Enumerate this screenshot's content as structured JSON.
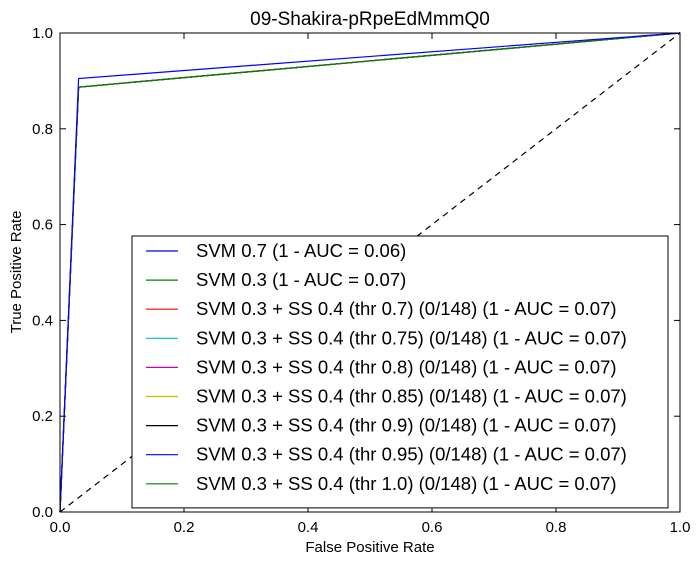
{
  "chart_data": {
    "type": "line",
    "title": "09-Shakira-pRpeEdMmmQ0",
    "xlabel": "False Positive Rate",
    "ylabel": "True Positive Rate",
    "xlim": [
      0.0,
      1.0
    ],
    "ylim": [
      0.0,
      1.0
    ],
    "xticks": [
      "0.0",
      "0.2",
      "0.4",
      "0.6",
      "0.8",
      "1.0"
    ],
    "yticks": [
      "0.0",
      "0.2",
      "0.4",
      "0.6",
      "0.8",
      "1.0"
    ],
    "grid": false,
    "legend_position": "lower-right",
    "diagonal": {
      "style": "dashed",
      "color": "#000000",
      "x": [
        0,
        1
      ],
      "y": [
        0,
        1
      ]
    },
    "series": [
      {
        "name": "SVM 0.7 (1 - AUC = 0.06)",
        "color": "#0000ff",
        "x": [
          0,
          0.03,
          1
        ],
        "y": [
          0,
          0.905,
          1
        ]
      },
      {
        "name": "SVM 0.3 (1 - AUC = 0.07)",
        "color": "#008000",
        "x": [
          0,
          0.03,
          1
        ],
        "y": [
          0,
          0.887,
          1
        ]
      },
      {
        "name": "SVM 0.3 + SS 0.4 (thr 0.7) (0/148) (1 - AUC = 0.07)",
        "color": "#ff0000",
        "x": [
          0,
          0.03,
          1
        ],
        "y": [
          0,
          0.887,
          1
        ]
      },
      {
        "name": "SVM 0.3 + SS 0.4 (thr 0.75) (0/148) (1 - AUC = 0.07)",
        "color": "#00bfbf",
        "x": [
          0,
          0.03,
          1
        ],
        "y": [
          0,
          0.887,
          1
        ]
      },
      {
        "name": "SVM 0.3 + SS 0.4 (thr 0.8) (0/148) (1 - AUC = 0.07)",
        "color": "#bf00bf",
        "x": [
          0,
          0.03,
          1
        ],
        "y": [
          0,
          0.887,
          1
        ]
      },
      {
        "name": "SVM 0.3 + SS 0.4 (thr 0.85) (0/148) (1 - AUC = 0.07)",
        "color": "#bfbf00",
        "x": [
          0,
          0.03,
          1
        ],
        "y": [
          0,
          0.887,
          1
        ]
      },
      {
        "name": "SVM 0.3 + SS 0.4 (thr 0.9) (0/148) (1 - AUC = 0.07)",
        "color": "#000000",
        "x": [
          0,
          0.03,
          1
        ],
        "y": [
          0,
          0.887,
          1
        ]
      },
      {
        "name": "SVM 0.3 + SS 0.4 (thr 0.95) (0/148) (1 - AUC = 0.07)",
        "color": "#0000ff",
        "x": [
          0,
          0.03,
          1
        ],
        "y": [
          0,
          0.887,
          1
        ]
      },
      {
        "name": "SVM 0.3 + SS 0.4 (thr 1.0) (0/148) (1 - AUC = 0.07)",
        "color": "#008000",
        "x": [
          0,
          0.03,
          1
        ],
        "y": [
          0,
          0.887,
          1
        ]
      }
    ]
  }
}
